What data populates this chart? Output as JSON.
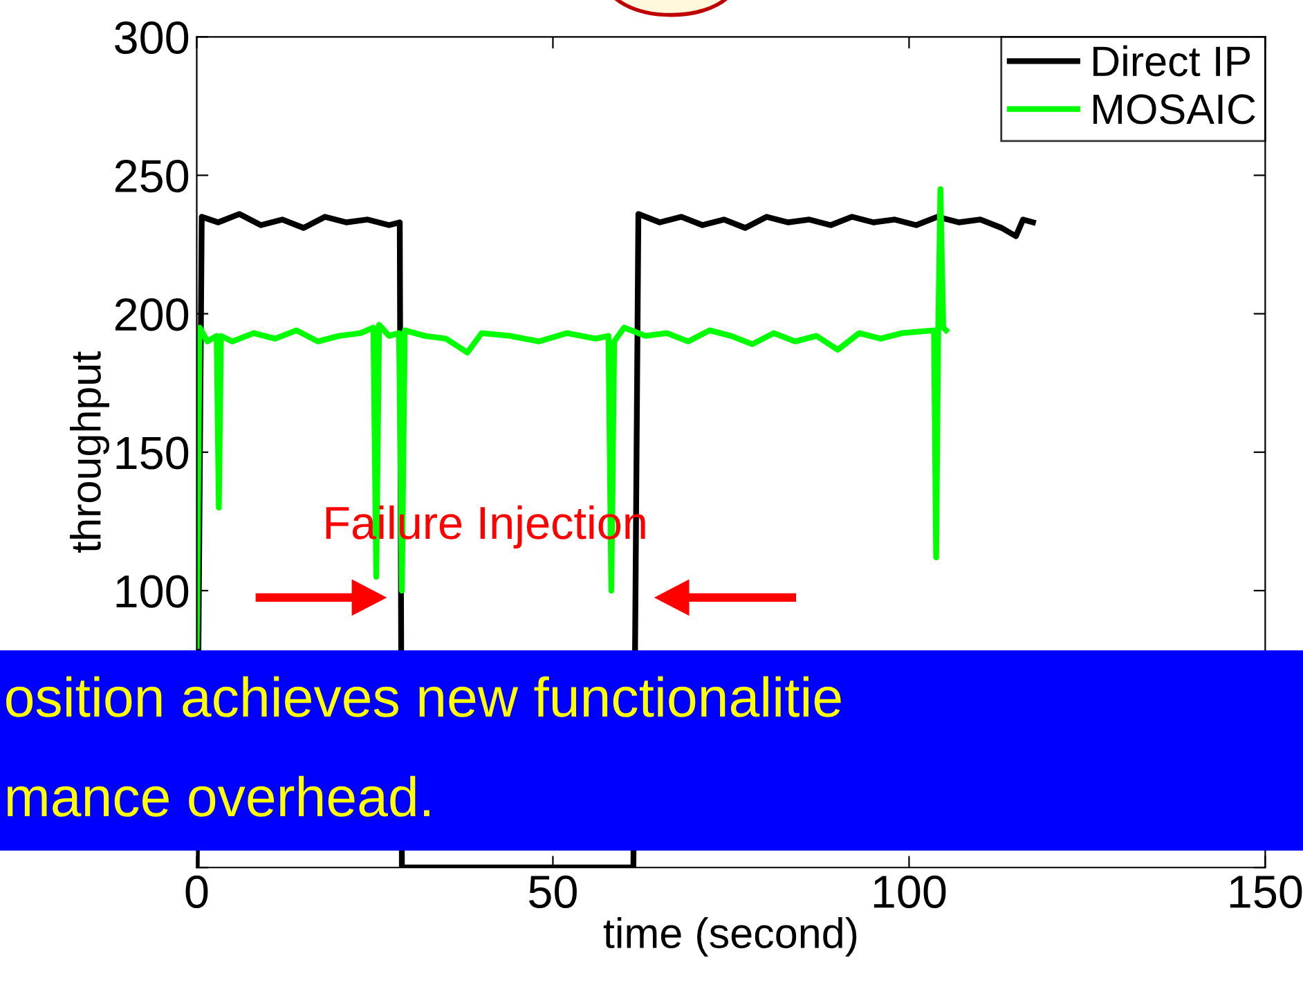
{
  "chart_data": {
    "type": "line",
    "xlabel": "time (second)",
    "ylabel": "throughput",
    "xlim": [
      0,
      150
    ],
    "xticks": [
      0,
      50,
      100,
      150
    ],
    "ylim": [
      0,
      300
    ],
    "yticks": [
      {
        "value": 0,
        "label": null
      },
      {
        "value": 50,
        "label": null
      },
      100,
      150,
      200,
      250,
      300
    ],
    "legend": "top right",
    "grid": false,
    "line_style": "solid",
    "marker": "none",
    "series": [
      {
        "name": "Direct IP",
        "color": "#000000",
        "x": [
          0,
          0.7,
          3,
          6,
          9,
          12,
          15,
          18,
          21,
          24,
          27,
          28.5,
          28.8,
          61.3,
          62,
          65,
          68,
          71,
          74,
          77,
          80,
          83,
          86,
          89,
          92,
          95,
          98,
          101,
          104,
          107,
          110,
          113,
          115,
          116,
          117.4
        ],
        "values": [
          0,
          235,
          233,
          236,
          232,
          234,
          231,
          235,
          233,
          234,
          232,
          233,
          0,
          0,
          236,
          233,
          235,
          232,
          234,
          231,
          235,
          233,
          234,
          232,
          235,
          233,
          234,
          232,
          235,
          233,
          234,
          231,
          228,
          234,
          233
        ]
      },
      {
        "name": "MOSAIC",
        "color": "#00ff00",
        "x": [
          0,
          0.4,
          1.5,
          2.8,
          3.1,
          3.4,
          5,
          8,
          11,
          14,
          17,
          20,
          23,
          24.8,
          25.2,
          25.6,
          27,
          28.4,
          28.8,
          29.2,
          32,
          35,
          38,
          40,
          44,
          48,
          52,
          56,
          57.8,
          58.2,
          58.6,
          60,
          63,
          66,
          69,
          72,
          75,
          78,
          81,
          84,
          87,
          90,
          93,
          96,
          99,
          103.5,
          103.8,
          104.1,
          104.4,
          104.8,
          105.2
        ],
        "values": [
          80,
          195,
          190,
          192,
          130,
          192,
          190,
          193,
          191,
          194,
          190,
          192,
          193,
          195,
          105,
          196,
          192,
          193,
          100,
          194,
          192,
          191,
          186,
          193,
          192,
          190,
          193,
          191,
          192,
          100,
          190,
          195,
          192,
          193,
          190,
          194,
          192,
          189,
          193,
          190,
          192,
          187,
          193,
          191,
          193,
          194,
          112,
          195,
          245,
          195,
          194
        ]
      }
    ],
    "annotations": [
      "Failure Injection",
      "osition achieves new functionalitie",
      "mance overhead."
    ]
  }
}
